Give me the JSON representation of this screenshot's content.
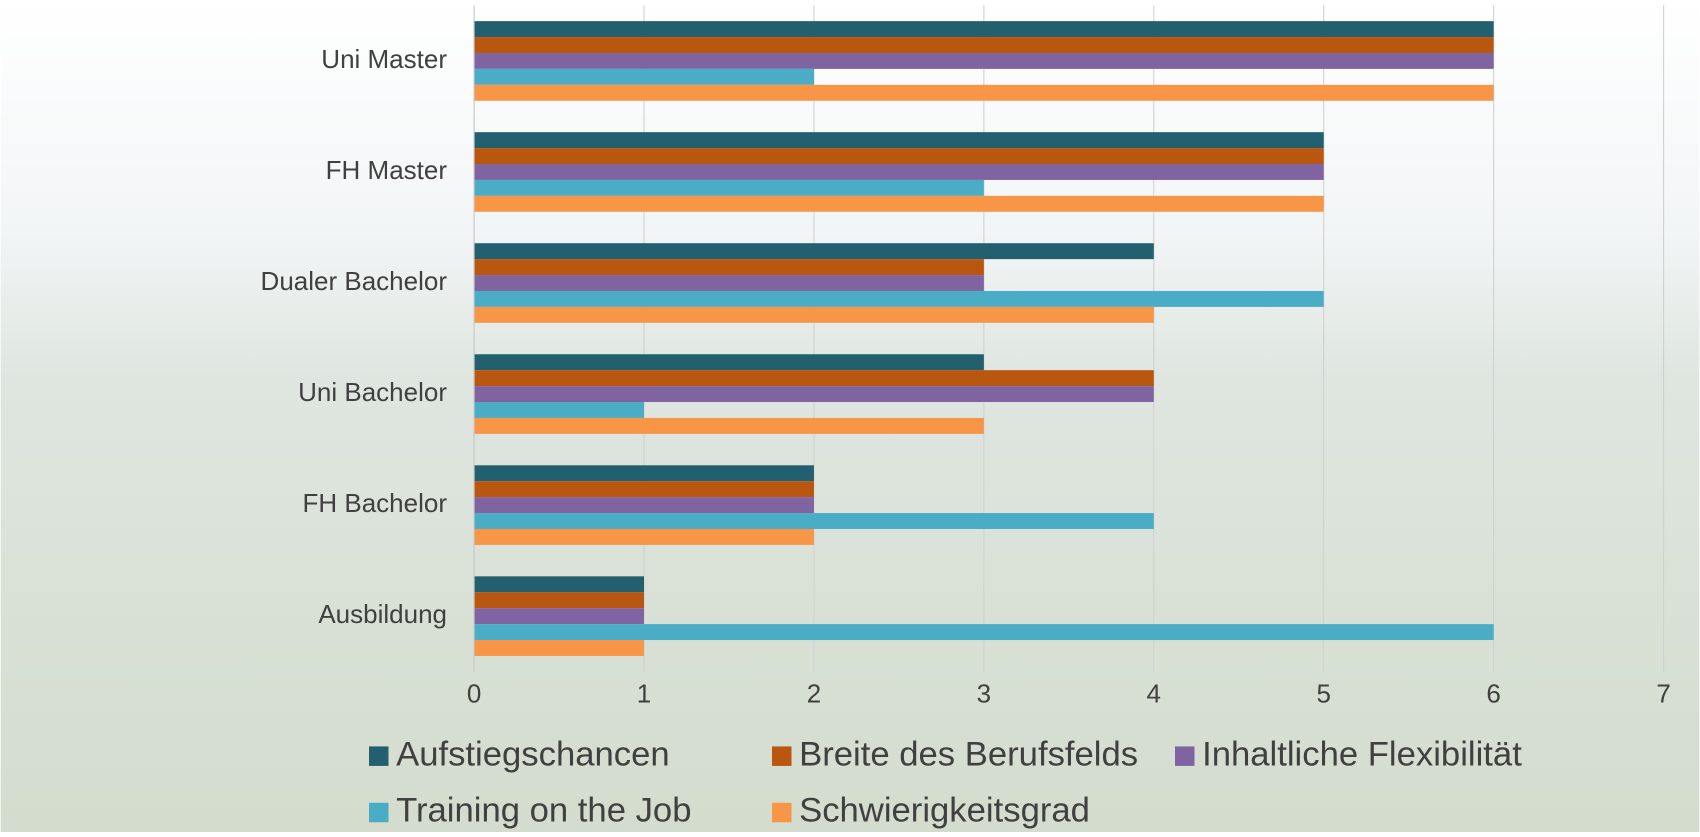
{
  "chart_data": {
    "type": "bar",
    "orientation": "horizontal",
    "categories": [
      "Uni Master",
      "FH Master",
      "Dualer Bachelor",
      "Uni Bachelor",
      "FH Bachelor",
      "Ausbildung"
    ],
    "series": [
      {
        "name": "Aufstiegschancen",
        "color": "#22606f",
        "values": [
          6,
          5,
          4,
          3,
          2,
          1
        ]
      },
      {
        "name": "Breite des Berufsfelds",
        "color": "#b9560f",
        "values": [
          6,
          5,
          3,
          4,
          2,
          1
        ]
      },
      {
        "name": "Inhaltliche Flexibilität",
        "color": "#8064a2",
        "values": [
          6,
          5,
          3,
          4,
          2,
          1
        ]
      },
      {
        "name": "Training on the Job",
        "color": "#4bacc6",
        "values": [
          2,
          3,
          5,
          1,
          4,
          6
        ]
      },
      {
        "name": "Schwierigkeitsgrad",
        "color": "#f79646",
        "values": [
          6,
          5,
          4,
          3,
          2,
          1
        ]
      }
    ],
    "xlim": [
      0,
      7
    ],
    "xticks": [
      0,
      1,
      2,
      3,
      4,
      5,
      6,
      7
    ],
    "grid": true,
    "legend": "bottom"
  }
}
